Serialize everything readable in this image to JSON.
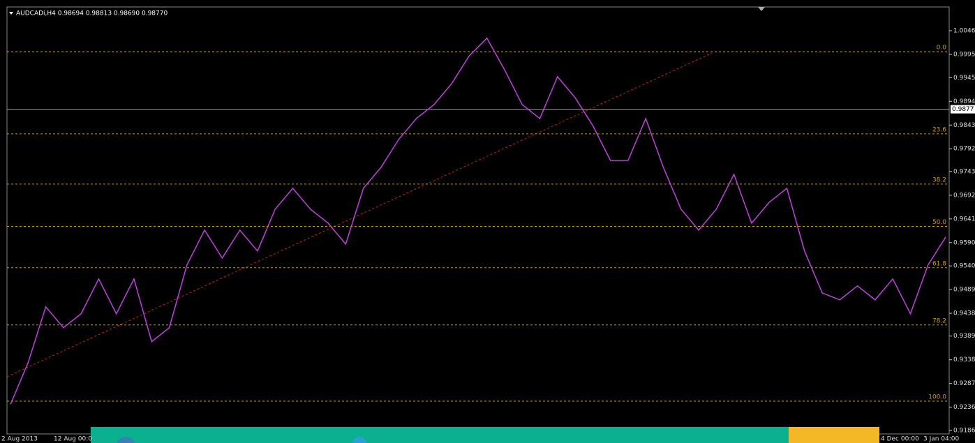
{
  "chart_data": {
    "type": "line",
    "title": "AUDCADi,H4  0.98694 0.98813 0.98690 0.98770",
    "current_price": {
      "value": 0.9877,
      "label": "0.9877"
    },
    "ylim": [
      0.9186,
      1.0046
    ],
    "yticks": [
      1.0046,
      0.9995,
      0.9945,
      0.9894,
      0.9843,
      0.9792,
      0.9743,
      0.9692,
      0.9641,
      {
        "value": 0.959,
        "label": "0.9590"
      },
      {
        "value": 0.954,
        "label": "0.9540"
      },
      0.9489,
      0.9438,
      0.9389,
      0.9338,
      0.9287,
      0.9236,
      0.9186
    ],
    "fib_levels": [
      {
        "value": 1.0001,
        "label": "0.0"
      },
      {
        "value": 0.9824,
        "label": "23.6"
      },
      {
        "value": 0.9716,
        "label": "38.2"
      },
      {
        "value": 0.9625,
        "label": "50.0"
      },
      {
        "value": 0.9536,
        "label": "61.8"
      },
      {
        "value": 0.9413,
        "label": "78.2"
      },
      {
        "value": 0.9249,
        "label": "100.0"
      }
    ],
    "date_labels": [
      "2 Aug 2013",
      "12 Aug 00:0",
      "4 Dec 00:00",
      "3 Jan 04:00"
    ],
    "series": [
      {
        "color": "#c040e0",
        "values": [
          0.9242,
          0.9332,
          0.9452,
          0.9407,
          0.9437,
          0.9512,
          0.9437,
          0.9512,
          0.9377,
          0.9407,
          0.9542,
          0.9617,
          0.9557,
          0.9617,
          0.9572,
          0.9662,
          0.9707,
          0.9662,
          0.9632,
          0.9587,
          0.9707,
          0.9752,
          0.9812,
          0.9857,
          0.9887,
          0.9932,
          0.9992,
          1.003,
          0.9962,
          0.9887,
          0.9857,
          0.9947,
          0.9902,
          0.9842,
          0.9767,
          0.9767,
          0.9857,
          0.9752,
          0.9662,
          0.9617,
          0.9662,
          0.9737,
          0.9632,
          0.9677,
          0.9707,
          0.9572,
          0.9482,
          0.9467,
          0.9497,
          0.9467,
          0.9512,
          0.9437,
          0.9542,
          0.9602
        ]
      }
    ]
  }
}
